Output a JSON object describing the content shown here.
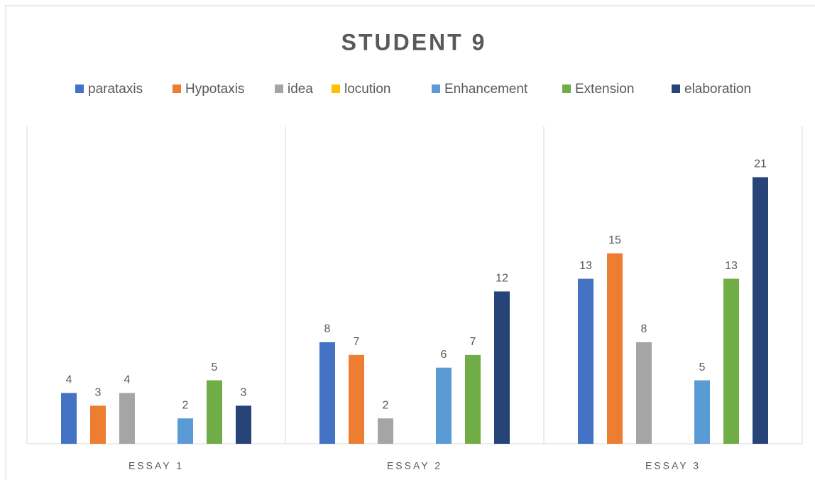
{
  "chart_data": {
    "type": "bar",
    "title": "STUDENT 9",
    "categories": [
      "ESSAY 1",
      "ESSAY 2",
      "ESSAY 3"
    ],
    "series": [
      {
        "name": "parataxis",
        "color": "#4472c4",
        "values": [
          4,
          8,
          13
        ]
      },
      {
        "name": "Hypotaxis",
        "color": "#ed7d31",
        "values": [
          3,
          7,
          15
        ]
      },
      {
        "name": "idea",
        "color": "#a5a5a5",
        "values": [
          4,
          2,
          8
        ]
      },
      {
        "name": "locution",
        "color": "#ffc000",
        "values": [
          null,
          null,
          null
        ]
      },
      {
        "name": "Enhancement",
        "color": "#5b9bd5",
        "values": [
          2,
          6,
          5
        ]
      },
      {
        "name": "Extension",
        "color": "#70ad47",
        "values": [
          5,
          7,
          13
        ]
      },
      {
        "name": "elaboration",
        "color": "#264478",
        "values": [
          3,
          12,
          21
        ]
      }
    ],
    "ylim": [
      0,
      25
    ],
    "legend": "top"
  }
}
